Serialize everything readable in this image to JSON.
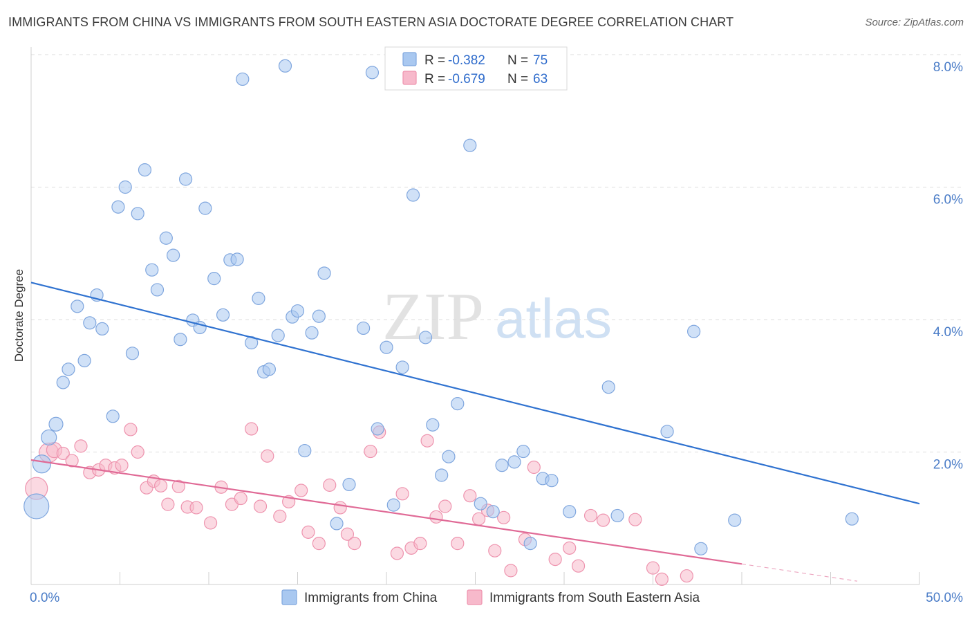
{
  "title": "IMMIGRANTS FROM CHINA VS IMMIGRANTS FROM SOUTH EASTERN ASIA DOCTORATE DEGREE CORRELATION CHART",
  "source": "Source: ZipAtlas.com",
  "watermark": {
    "zip": "ZIP",
    "atlas": "atlas"
  },
  "colors": {
    "china_fill": "#a9c8f0",
    "china_stroke": "#7fa6de",
    "china_line": "#2f72d0",
    "sea_fill": "#f7b9cb",
    "sea_stroke": "#ee93ae",
    "sea_line": "#e06a96",
    "tick_text": "#4a7cc7"
  },
  "legend": {
    "rows": [
      {
        "r_label": "R =",
        "r_value": "-0.382",
        "n_label": "N =",
        "n_value": "75"
      },
      {
        "r_label": "R =",
        "r_value": "-0.679",
        "n_label": "N =",
        "n_value": "63"
      }
    ]
  },
  "chart_data": {
    "type": "scatter",
    "title": "IMMIGRANTS FROM CHINA VS IMMIGRANTS FROM SOUTH EASTERN ASIA DOCTORATE DEGREE CORRELATION CHART",
    "xlabel": "",
    "ylabel": "Doctorate Degree",
    "xlim": [
      0,
      50
    ],
    "ylim": [
      0,
      8.0
    ],
    "x_tick_labels": [
      "0.0%",
      "50.0%"
    ],
    "y_ticks": [
      2.0,
      4.0,
      6.0,
      8.0
    ],
    "y_tick_labels": [
      "2.0%",
      "4.0%",
      "6.0%",
      "8.0%"
    ],
    "grid": "horizontal dashed",
    "legend_position": "top-center",
    "series": [
      {
        "name": "Immigrants from China",
        "R": -0.382,
        "N": 75,
        "trend": {
          "x": [
            0,
            50
          ],
          "y": [
            4.56,
            1.22
          ]
        },
        "points": [
          {
            "x": 0.3,
            "y": 1.18,
            "size": 18
          },
          {
            "x": 0.6,
            "y": 1.82,
            "size": 13
          },
          {
            "x": 1.0,
            "y": 2.22,
            "size": 11
          },
          {
            "x": 1.4,
            "y": 2.42,
            "size": 10
          },
          {
            "x": 1.8,
            "y": 3.05,
            "size": 9
          },
          {
            "x": 2.1,
            "y": 3.25,
            "size": 9
          },
          {
            "x": 2.6,
            "y": 4.2,
            "size": 9
          },
          {
            "x": 3.0,
            "y": 3.38,
            "size": 9
          },
          {
            "x": 3.3,
            "y": 3.95,
            "size": 9
          },
          {
            "x": 3.7,
            "y": 4.37,
            "size": 9
          },
          {
            "x": 4.0,
            "y": 3.86,
            "size": 9
          },
          {
            "x": 4.6,
            "y": 2.54,
            "size": 9
          },
          {
            "x": 4.9,
            "y": 5.7,
            "size": 9
          },
          {
            "x": 5.3,
            "y": 6.0,
            "size": 9
          },
          {
            "x": 5.7,
            "y": 3.49,
            "size": 9
          },
          {
            "x": 6.0,
            "y": 5.6,
            "size": 9
          },
          {
            "x": 6.4,
            "y": 6.26,
            "size": 9
          },
          {
            "x": 6.8,
            "y": 4.75,
            "size": 9
          },
          {
            "x": 7.1,
            "y": 4.45,
            "size": 9
          },
          {
            "x": 7.6,
            "y": 5.23,
            "size": 9
          },
          {
            "x": 8.0,
            "y": 4.97,
            "size": 9
          },
          {
            "x": 8.4,
            "y": 3.7,
            "size": 9
          },
          {
            "x": 8.7,
            "y": 6.12,
            "size": 9
          },
          {
            "x": 9.1,
            "y": 3.99,
            "size": 9
          },
          {
            "x": 9.5,
            "y": 3.88,
            "size": 9
          },
          {
            "x": 9.8,
            "y": 5.68,
            "size": 9
          },
          {
            "x": 10.3,
            "y": 4.62,
            "size": 9
          },
          {
            "x": 10.8,
            "y": 4.07,
            "size": 9
          },
          {
            "x": 11.2,
            "y": 4.9,
            "size": 9
          },
          {
            "x": 11.6,
            "y": 4.91,
            "size": 9
          },
          {
            "x": 11.9,
            "y": 7.63,
            "size": 9
          },
          {
            "x": 12.4,
            "y": 3.65,
            "size": 9
          },
          {
            "x": 12.8,
            "y": 4.32,
            "size": 9
          },
          {
            "x": 13.1,
            "y": 3.21,
            "size": 9
          },
          {
            "x": 13.4,
            "y": 3.25,
            "size": 9
          },
          {
            "x": 13.9,
            "y": 3.76,
            "size": 9
          },
          {
            "x": 14.3,
            "y": 7.83,
            "size": 9
          },
          {
            "x": 14.7,
            "y": 4.04,
            "size": 9
          },
          {
            "x": 15.0,
            "y": 4.13,
            "size": 9
          },
          {
            "x": 15.4,
            "y": 2.02,
            "size": 9
          },
          {
            "x": 15.8,
            "y": 3.8,
            "size": 9
          },
          {
            "x": 16.2,
            "y": 4.05,
            "size": 9
          },
          {
            "x": 16.5,
            "y": 4.7,
            "size": 9
          },
          {
            "x": 17.2,
            "y": 0.92,
            "size": 9
          },
          {
            "x": 17.9,
            "y": 1.51,
            "size": 9
          },
          {
            "x": 18.7,
            "y": 3.87,
            "size": 9
          },
          {
            "x": 19.2,
            "y": 7.73,
            "size": 9
          },
          {
            "x": 19.5,
            "y": 2.35,
            "size": 9
          },
          {
            "x": 20.0,
            "y": 3.58,
            "size": 9
          },
          {
            "x": 20.4,
            "y": 1.2,
            "size": 9
          },
          {
            "x": 20.9,
            "y": 3.28,
            "size": 9
          },
          {
            "x": 21.5,
            "y": 5.88,
            "size": 9
          },
          {
            "x": 22.2,
            "y": 3.73,
            "size": 9
          },
          {
            "x": 22.6,
            "y": 2.41,
            "size": 9
          },
          {
            "x": 23.1,
            "y": 1.65,
            "size": 9
          },
          {
            "x": 23.5,
            "y": 1.93,
            "size": 9
          },
          {
            "x": 24.0,
            "y": 2.73,
            "size": 9
          },
          {
            "x": 24.7,
            "y": 6.63,
            "size": 9
          },
          {
            "x": 25.3,
            "y": 1.22,
            "size": 9
          },
          {
            "x": 26.0,
            "y": 1.1,
            "size": 9
          },
          {
            "x": 26.5,
            "y": 1.8,
            "size": 9
          },
          {
            "x": 27.2,
            "y": 1.85,
            "size": 9
          },
          {
            "x": 27.7,
            "y": 2.01,
            "size": 9
          },
          {
            "x": 28.1,
            "y": 0.62,
            "size": 9
          },
          {
            "x": 28.8,
            "y": 1.6,
            "size": 9
          },
          {
            "x": 29.3,
            "y": 1.57,
            "size": 9
          },
          {
            "x": 29.7,
            "y": 7.92,
            "size": 9
          },
          {
            "x": 30.3,
            "y": 1.1,
            "size": 9
          },
          {
            "x": 32.5,
            "y": 2.98,
            "size": 9
          },
          {
            "x": 33.0,
            "y": 1.04,
            "size": 9
          },
          {
            "x": 35.8,
            "y": 2.31,
            "size": 9
          },
          {
            "x": 37.3,
            "y": 3.82,
            "size": 9
          },
          {
            "x": 37.7,
            "y": 0.54,
            "size": 9
          },
          {
            "x": 39.6,
            "y": 0.97,
            "size": 9
          },
          {
            "x": 46.2,
            "y": 0.99,
            "size": 9
          }
        ]
      },
      {
        "name": "Immigrants from South Eastern Asia",
        "R": -0.679,
        "N": 63,
        "trend": {
          "x": [
            0,
            40
          ],
          "y": [
            1.88,
            0.31
          ]
        },
        "trend_dashed": {
          "x": [
            40,
            46.5
          ],
          "y": [
            0.31,
            0.05
          ]
        },
        "points": [
          {
            "x": 0.3,
            "y": 1.45,
            "size": 16
          },
          {
            "x": 1.0,
            "y": 1.99,
            "size": 14
          },
          {
            "x": 1.3,
            "y": 2.03,
            "size": 11
          },
          {
            "x": 1.8,
            "y": 1.98,
            "size": 9
          },
          {
            "x": 2.3,
            "y": 1.87,
            "size": 9
          },
          {
            "x": 2.8,
            "y": 2.09,
            "size": 9
          },
          {
            "x": 3.3,
            "y": 1.69,
            "size": 9
          },
          {
            "x": 3.8,
            "y": 1.73,
            "size": 9
          },
          {
            "x": 4.2,
            "y": 1.8,
            "size": 9
          },
          {
            "x": 4.7,
            "y": 1.76,
            "size": 9
          },
          {
            "x": 5.1,
            "y": 1.8,
            "size": 9
          },
          {
            "x": 5.6,
            "y": 2.34,
            "size": 9
          },
          {
            "x": 6.0,
            "y": 2.0,
            "size": 9
          },
          {
            "x": 6.5,
            "y": 1.46,
            "size": 9
          },
          {
            "x": 6.9,
            "y": 1.56,
            "size": 9
          },
          {
            "x": 7.3,
            "y": 1.49,
            "size": 9
          },
          {
            "x": 7.7,
            "y": 1.21,
            "size": 9
          },
          {
            "x": 8.3,
            "y": 1.48,
            "size": 9
          },
          {
            "x": 8.8,
            "y": 1.17,
            "size": 9
          },
          {
            "x": 9.3,
            "y": 1.16,
            "size": 9
          },
          {
            "x": 10.1,
            "y": 0.93,
            "size": 9
          },
          {
            "x": 10.7,
            "y": 1.47,
            "size": 9
          },
          {
            "x": 11.3,
            "y": 1.21,
            "size": 9
          },
          {
            "x": 11.8,
            "y": 1.3,
            "size": 9
          },
          {
            "x": 12.4,
            "y": 2.35,
            "size": 9
          },
          {
            "x": 12.9,
            "y": 1.18,
            "size": 9
          },
          {
            "x": 13.3,
            "y": 1.94,
            "size": 9
          },
          {
            "x": 14.0,
            "y": 1.03,
            "size": 9
          },
          {
            "x": 14.5,
            "y": 1.25,
            "size": 9
          },
          {
            "x": 15.2,
            "y": 1.42,
            "size": 9
          },
          {
            "x": 15.6,
            "y": 0.79,
            "size": 9
          },
          {
            "x": 16.2,
            "y": 0.62,
            "size": 9
          },
          {
            "x": 16.8,
            "y": 1.5,
            "size": 9
          },
          {
            "x": 17.4,
            "y": 1.16,
            "size": 9
          },
          {
            "x": 17.8,
            "y": 0.76,
            "size": 9
          },
          {
            "x": 18.2,
            "y": 0.62,
            "size": 9
          },
          {
            "x": 19.1,
            "y": 2.01,
            "size": 9
          },
          {
            "x": 19.6,
            "y": 2.3,
            "size": 9
          },
          {
            "x": 20.6,
            "y": 0.47,
            "size": 9
          },
          {
            "x": 20.9,
            "y": 1.37,
            "size": 9
          },
          {
            "x": 21.4,
            "y": 0.55,
            "size": 9
          },
          {
            "x": 21.9,
            "y": 0.62,
            "size": 9
          },
          {
            "x": 22.3,
            "y": 2.17,
            "size": 9
          },
          {
            "x": 22.8,
            "y": 1.02,
            "size": 9
          },
          {
            "x": 23.3,
            "y": 1.18,
            "size": 9
          },
          {
            "x": 24.0,
            "y": 0.62,
            "size": 9
          },
          {
            "x": 24.7,
            "y": 1.34,
            "size": 9
          },
          {
            "x": 25.2,
            "y": 0.99,
            "size": 9
          },
          {
            "x": 25.7,
            "y": 1.12,
            "size": 9
          },
          {
            "x": 26.1,
            "y": 0.51,
            "size": 9
          },
          {
            "x": 26.6,
            "y": 1.01,
            "size": 9
          },
          {
            "x": 27.0,
            "y": 0.21,
            "size": 9
          },
          {
            "x": 27.8,
            "y": 0.68,
            "size": 9
          },
          {
            "x": 28.3,
            "y": 1.77,
            "size": 9
          },
          {
            "x": 29.5,
            "y": 0.38,
            "size": 9
          },
          {
            "x": 30.3,
            "y": 0.55,
            "size": 9
          },
          {
            "x": 30.8,
            "y": 0.28,
            "size": 9
          },
          {
            "x": 31.5,
            "y": 1.04,
            "size": 9
          },
          {
            "x": 32.2,
            "y": 0.97,
            "size": 9
          },
          {
            "x": 34.0,
            "y": 0.98,
            "size": 9
          },
          {
            "x": 35.0,
            "y": 0.25,
            "size": 9
          },
          {
            "x": 35.5,
            "y": 0.08,
            "size": 9
          },
          {
            "x": 36.9,
            "y": 0.13,
            "size": 9
          }
        ]
      }
    ]
  }
}
